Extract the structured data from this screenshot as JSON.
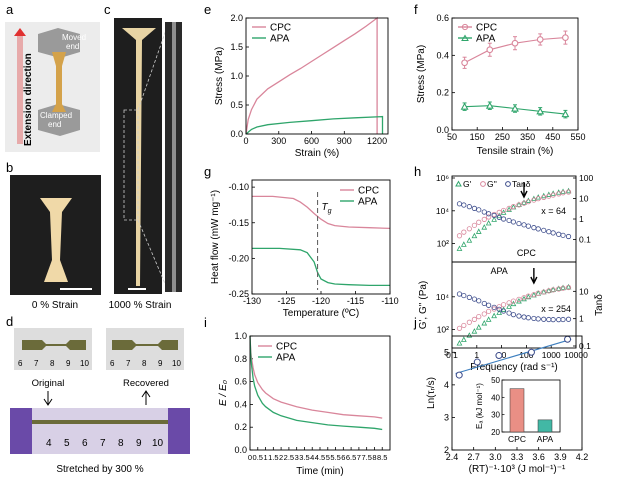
{
  "panels": {
    "a": {
      "letter": "a",
      "axis_label": "Extension direction",
      "top_label": [
        "Moved",
        "end"
      ],
      "bottom_label": [
        "Clamped",
        "end"
      ]
    },
    "b": {
      "letter": "b",
      "caption": "0 % Strain"
    },
    "c": {
      "letter": "c",
      "caption": "1000 % Strain"
    },
    "d": {
      "letter": "d",
      "label_left": "Original",
      "label_right": "Recovered",
      "caption": "Stretched by 300 %",
      "ruler_top_left": [
        "6",
        "7",
        "8",
        "9",
        "10"
      ],
      "ruler_top_right": [
        "6",
        "7",
        "8",
        "9",
        "10"
      ],
      "ruler_bottom": [
        "4",
        "5",
        "6",
        "7",
        "8",
        "9",
        "10"
      ]
    },
    "e": {
      "letter": "e"
    },
    "f": {
      "letter": "f"
    },
    "g": {
      "letter": "g",
      "annotation": "T",
      "annotation_sub": "g"
    },
    "h": {
      "letter": "h",
      "legend": [
        "G'",
        "G''",
        "Tanδ"
      ],
      "labels": [
        "CPC",
        "APA"
      ],
      "x_labels": [
        "x = 64",
        "x = 254"
      ],
      "ylabel_left": "G', G'' (Pa)",
      "ylabel_right": "Tanδ",
      "xlabel": "Frequency (rad s⁻¹)"
    },
    "i": {
      "letter": "i"
    },
    "j": {
      "letter": "j"
    }
  },
  "colors": {
    "cpc": "#d9869b",
    "apa": "#2fa56b",
    "tg_line": "#666666",
    "fit": "#3d7fbf",
    "circle": "#3a4a8a",
    "bar_cpc": "#e98f85",
    "bar_apa": "#42b8a5"
  },
  "chart_data": [
    {
      "id": "e",
      "type": "line",
      "xlabel": "Strain (%)",
      "ylabel": "Stress (MPa)",
      "xlim": [
        0,
        1300
      ],
      "ylim": [
        0,
        2
      ],
      "xticks": [
        0,
        300,
        600,
        900,
        1200
      ],
      "yticks": [
        0.0,
        0.5,
        1.0,
        1.5,
        2.0
      ],
      "series": [
        {
          "name": "CPC",
          "x": [
            0,
            20,
            50,
            100,
            200,
            300,
            400,
            500,
            600,
            700,
            800,
            900,
            1000,
            1100,
            1200,
            1200
          ],
          "y": [
            0,
            0.25,
            0.42,
            0.6,
            0.78,
            0.9,
            1.02,
            1.13,
            1.25,
            1.37,
            1.49,
            1.61,
            1.73,
            1.86,
            2.0,
            0
          ]
        },
        {
          "name": "APA",
          "x": [
            0,
            50,
            100,
            200,
            400,
            600,
            800,
            1000,
            1250,
            1250
          ],
          "y": [
            0,
            0.08,
            0.12,
            0.16,
            0.2,
            0.23,
            0.26,
            0.28,
            0.3,
            0
          ]
        }
      ]
    },
    {
      "id": "f",
      "type": "line",
      "xlabel": "Tensile strain (%)",
      "ylabel": "Stress (MPa)",
      "xlim": [
        50,
        550
      ],
      "ylim": [
        0,
        0.6
      ],
      "xticks": [
        50,
        150,
        250,
        350,
        450,
        550
      ],
      "yticks": [
        0.0,
        0.2,
        0.4,
        0.6
      ],
      "series": [
        {
          "name": "CPC",
          "x": [
            100,
            200,
            300,
            400,
            500
          ],
          "y": [
            0.36,
            0.43,
            0.465,
            0.485,
            0.495
          ],
          "err": [
            0.03,
            0.035,
            0.035,
            0.03,
            0.035
          ]
        },
        {
          "name": "APA",
          "x": [
            100,
            200,
            300,
            400,
            500
          ],
          "y": [
            0.125,
            0.13,
            0.115,
            0.1,
            0.085
          ],
          "err": [
            0.02,
            0.02,
            0.02,
            0.02,
            0.02
          ]
        }
      ]
    },
    {
      "id": "g",
      "type": "line",
      "xlabel": "Temperature (ºC)",
      "ylabel": "Heat flow (mW mg⁻¹)",
      "xlim": [
        -130,
        -110
      ],
      "ylim": [
        -0.25,
        -0.09
      ],
      "xticks": [
        -130,
        -125,
        -120,
        -115,
        -110
      ],
      "yticks": [
        -0.1,
        -0.15,
        -0.2,
        -0.25
      ],
      "tg": -120.5,
      "series": [
        {
          "name": "CPC",
          "x": [
            -130,
            -127,
            -124,
            -123,
            -122,
            -121,
            -120,
            -119,
            -118,
            -116,
            -113,
            -110
          ],
          "y": [
            -0.113,
            -0.113,
            -0.116,
            -0.121,
            -0.128,
            -0.137,
            -0.145,
            -0.151,
            -0.154,
            -0.156,
            -0.157,
            -0.158
          ]
        },
        {
          "name": "APA",
          "x": [
            -130,
            -126,
            -123,
            -122,
            -121,
            -120.5,
            -120,
            -119,
            -118,
            -116,
            -113,
            -110
          ],
          "y": [
            -0.186,
            -0.186,
            -0.188,
            -0.192,
            -0.205,
            -0.22,
            -0.229,
            -0.234,
            -0.236,
            -0.237,
            -0.238,
            -0.238
          ]
        }
      ]
    },
    {
      "id": "h",
      "type": "scatter",
      "xlabel": "Frequency (rad s⁻¹)",
      "xscale": "log",
      "xlim": [
        0.1,
        10000
      ],
      "xticks": [
        0.1,
        1,
        10,
        100,
        1000,
        10000
      ],
      "xtick_labels": [
        "0.1",
        "1",
        "10",
        "100",
        "1000",
        "10000"
      ],
      "top": {
        "yscale": "log",
        "ylim": [
          10,
          1000000
        ],
        "ytick_labels": [
          "10²",
          "10⁴",
          "10⁶"
        ],
        "y2lim": [
          0.01,
          100
        ],
        "y2tick_labels": [
          "0.1",
          "1",
          "10",
          "100"
        ],
        "series": [
          {
            "name": "G'",
            "x": [
              0.2,
              0.3,
              0.5,
              0.8,
              1.2,
              2,
              3,
              5,
              8,
              12,
              20,
              30,
              50,
              80,
              120,
              200,
              300,
              500,
              800,
              1200,
              2000,
              3000,
              5000
            ],
            "y": [
              50,
              90,
              160,
              300,
              550,
              1000,
              1800,
              3000,
              5000,
              8000,
              12000,
              17000,
              24000,
              32000,
              42000,
              55000,
              68000,
              82000,
              98000,
              115000,
              135000,
              150000,
              165000
            ]
          },
          {
            "name": "G''",
            "x": [
              0.2,
              0.3,
              0.5,
              0.8,
              1.2,
              2,
              3,
              5,
              8,
              12,
              20,
              30,
              50,
              80,
              120,
              200,
              300,
              500,
              800,
              1200,
              2000,
              3000,
              5000
            ],
            "y": [
              300,
              500,
              800,
              1300,
              2000,
              3000,
              4200,
              6000,
              8000,
              10500,
              14000,
              18000,
              23000,
              29000,
              36000,
              45000,
              55000,
              66000,
              78000,
              92000,
              108000,
              125000,
              140000
            ]
          },
          {
            "name": "Tanδ",
            "x": [
              0.2,
              0.3,
              0.5,
              0.8,
              1.2,
              2,
              3,
              5,
              8,
              12,
              20,
              30,
              50,
              80,
              120,
              200,
              300,
              500,
              800,
              1200,
              2000,
              3000,
              5000
            ],
            "y": [
              5.5,
              4.8,
              4.0,
              3.3,
              2.8,
              2.2,
              1.8,
              1.5,
              1.2,
              1.0,
              0.85,
              0.72,
              0.6,
              0.52,
              0.45,
              0.38,
              0.33,
              0.28,
              0.24,
              0.21,
              0.18,
              0.16,
              0.14
            ]
          }
        ],
        "arrow_x": 80
      },
      "bottom": {
        "yscale": "log",
        "ylim": [
          10,
          1000000
        ],
        "ytick_labels": [
          "10²",
          "10⁴"
        ],
        "y2lim": [
          0.1,
          100
        ],
        "y2tick_labels": [
          "0.1",
          "1",
          "10"
        ],
        "series": [
          {
            "name": "G'",
            "x": [
              0.2,
              0.3,
              0.5,
              0.8,
              1.2,
              2,
              3,
              5,
              8,
              12,
              20,
              30,
              50,
              80,
              120,
              200,
              300,
              500,
              800,
              1200,
              2000,
              3000,
              5000
            ],
            "y": [
              15,
              25,
              45,
              80,
              140,
              250,
              420,
              700,
              1100,
              1700,
              2600,
              3800,
              5500,
              7500,
              10000,
              13000,
              16500,
              20000,
              24000,
              28000,
              32000,
              36000,
              40000
            ]
          },
          {
            "name": "G''",
            "x": [
              0.2,
              0.3,
              0.5,
              0.8,
              1.2,
              2,
              3,
              5,
              8,
              12,
              20,
              30,
              50,
              80,
              120,
              200,
              300,
              500,
              800,
              1200,
              2000,
              3000,
              5000
            ],
            "y": [
              120,
              180,
              280,
              420,
              620,
              900,
              1300,
              1800,
              2500,
              3300,
              4300,
              5500,
              7000,
              8800,
              11000,
              13500,
              16500,
              19500,
              23000,
              26500,
              30000,
              33500,
              37000
            ]
          },
          {
            "name": "Tanδ",
            "x": [
              0.2,
              0.3,
              0.5,
              0.8,
              1.2,
              2,
              3,
              5,
              8,
              12,
              20,
              30,
              50,
              80,
              120,
              200,
              300,
              500,
              800,
              1200,
              2000,
              3000,
              5000
            ],
            "y": [
              8,
              7,
              6,
              5.2,
              4.5,
              3.6,
              3.1,
              2.6,
              2.2,
              1.9,
              1.6,
              1.4,
              1.25,
              1.15,
              1.08,
              1.02,
              0.98,
              0.95,
              0.93,
              0.92,
              0.92,
              0.93,
              0.95
            ]
          }
        ],
        "arrow_x": 200
      }
    },
    {
      "id": "i",
      "type": "line",
      "xlabel": "Time (min)",
      "ylabel": "E / E₀",
      "xlim": [
        0,
        9
      ],
      "ylim": [
        0,
        1
      ],
      "xticks": [
        0,
        0.5,
        1,
        1.5,
        2,
        2.5,
        3,
        3.5,
        4,
        4.5,
        5,
        5.5,
        6,
        6.5,
        7,
        7.5,
        8,
        8.5
      ],
      "xtick_labels": [
        "0",
        "0.5",
        "1",
        "1.5",
        "2",
        "2.5",
        "3",
        "3.5",
        "4",
        "4.5",
        "5",
        "5.5",
        "6",
        "6.5",
        "7",
        "7.5",
        "8",
        "8.5"
      ],
      "yticks": [
        0.0,
        0.2,
        0.4,
        0.6,
        0.8,
        1.0
      ],
      "series": [
        {
          "name": "CPC",
          "x": [
            0,
            0.05,
            0.1,
            0.2,
            0.3,
            0.5,
            0.8,
            1,
            1.5,
            2,
            3,
            4,
            5,
            6,
            7,
            8,
            8.5
          ],
          "y": [
            1,
            0.86,
            0.8,
            0.72,
            0.66,
            0.59,
            0.53,
            0.5,
            0.45,
            0.42,
            0.38,
            0.35,
            0.33,
            0.31,
            0.3,
            0.29,
            0.28
          ]
        },
        {
          "name": "APA",
          "x": [
            0,
            0.05,
            0.1,
            0.2,
            0.3,
            0.5,
            0.8,
            1,
            1.5,
            2,
            3,
            4,
            5,
            6,
            7,
            8,
            8.5
          ],
          "y": [
            1,
            0.82,
            0.74,
            0.63,
            0.56,
            0.48,
            0.41,
            0.38,
            0.33,
            0.3,
            0.26,
            0.24,
            0.22,
            0.21,
            0.2,
            0.19,
            0.18
          ]
        }
      ]
    },
    {
      "id": "j",
      "type": "scatter",
      "xlabel": "(RT)⁻¹·10³ (J mol⁻¹)⁻¹",
      "ylabel": "Ln(τᵣ/s)",
      "xlim": [
        2.4,
        4.2
      ],
      "ylim": [
        2,
        5.5
      ],
      "xticks": [
        2.4,
        2.7,
        3.0,
        3.3,
        3.6,
        3.9,
        4.2
      ],
      "yticks": [
        2,
        3,
        4,
        5
      ],
      "points": {
        "x": [
          2.5,
          2.75,
          3.05,
          3.5,
          4.0
        ],
        "y": [
          4.3,
          4.7,
          4.9,
          5.0,
          5.4
        ]
      },
      "fit": {
        "x": [
          2.45,
          4.05
        ],
        "y": [
          4.35,
          5.4
        ]
      },
      "inset": {
        "type": "bar",
        "categories": [
          "CPC",
          "APA"
        ],
        "values": [
          45,
          27
        ],
        "ylabel": "Eₐ (kJ mol⁻¹)",
        "ylim": [
          20,
          50
        ],
        "yticks": [
          20,
          30,
          40,
          50
        ]
      }
    }
  ]
}
